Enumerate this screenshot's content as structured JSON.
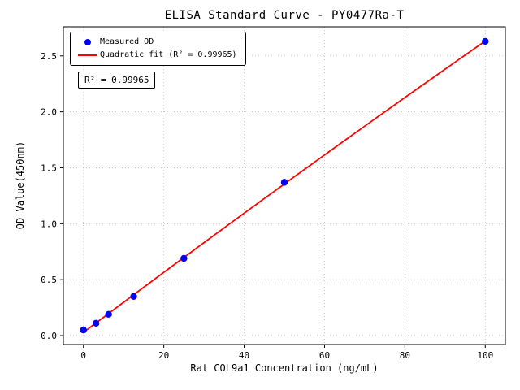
{
  "chart_data": {
    "type": "scatter",
    "title": "ELISA Standard Curve - PY0477Ra-T",
    "xlabel": "Rat COL9a1 Concentration (ng/mL)",
    "ylabel": "OD Value(450nm)",
    "xlim": [
      -5,
      105
    ],
    "ylim": [
      -0.08,
      2.76
    ],
    "xticks": [
      0,
      20,
      40,
      60,
      80,
      100
    ],
    "xtick_labels": [
      "0",
      "20",
      "40",
      "60",
      "80",
      "100"
    ],
    "yticks": [
      0,
      0.5,
      1.0,
      1.5,
      2.0,
      2.5
    ],
    "ytick_labels": [
      "0.0",
      "0.5",
      "1.0",
      "1.5",
      "2.0",
      "2.5"
    ],
    "grid": true,
    "grid_style": "dotted",
    "grid_color": "#b0b0b0",
    "legend_position": "upper left",
    "annotation": {
      "text": "R² = 0.99965"
    },
    "series": [
      {
        "name": "Measured OD",
        "type": "scatter",
        "marker": "circle",
        "color": "#0000ff",
        "x": [
          0,
          3.125,
          6.25,
          12.5,
          25,
          50,
          100
        ],
        "y": [
          0.05,
          0.11,
          0.19,
          0.35,
          0.69,
          1.37,
          2.63
        ]
      },
      {
        "name": "Quadratic fit (R² = 0.99965)",
        "type": "line",
        "fit": "quadratic",
        "fit_of": "Measured OD",
        "color": "#ff0000",
        "r_squared": 0.99965
      }
    ]
  }
}
